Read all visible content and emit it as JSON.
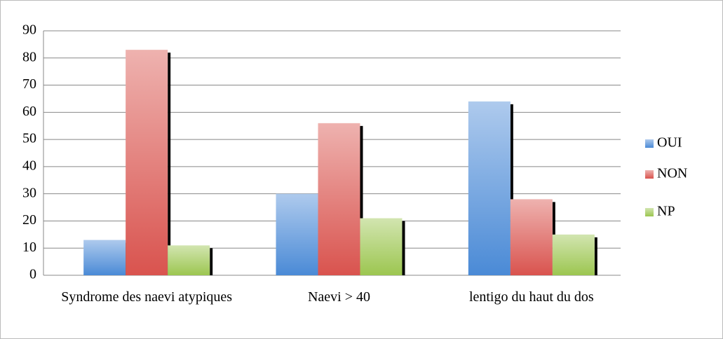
{
  "chart_data": {
    "type": "bar",
    "categories": [
      "Syndrome des naevi atypiques",
      "Naevi > 40",
      "lentigo du haut du dos"
    ],
    "series": [
      {
        "name": "OUI",
        "color": "#4a8ad6",
        "values": [
          13,
          30,
          64
        ]
      },
      {
        "name": "NON",
        "color": "#d9534e",
        "values": [
          83,
          56,
          28
        ]
      },
      {
        "name": "NP",
        "color": "#9cc650",
        "values": [
          11,
          21,
          15
        ]
      }
    ],
    "ylim": [
      0,
      90
    ],
    "yticks": [
      0,
      10,
      20,
      30,
      40,
      50,
      60,
      70,
      80,
      90
    ],
    "grid": true,
    "legend": "right"
  }
}
